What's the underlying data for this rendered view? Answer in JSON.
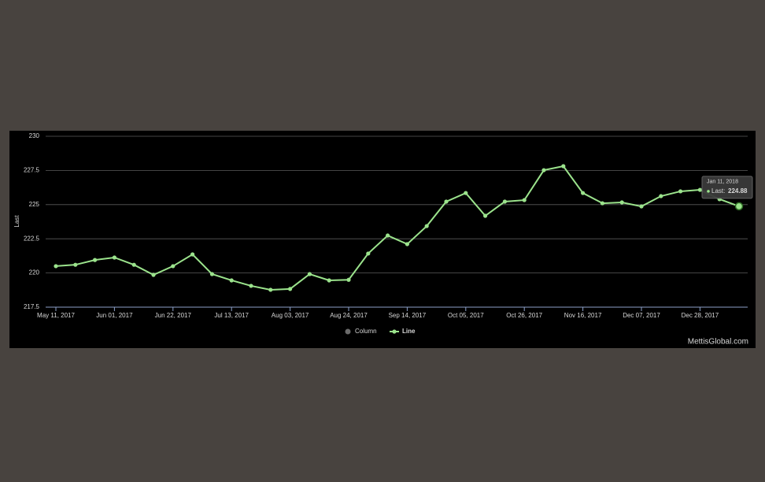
{
  "chart_data": {
    "type": "line",
    "y_label": "Last",
    "categories": [
      "May 11, 2017",
      null,
      null,
      "Jun 01, 2017",
      null,
      null,
      "Jun 22, 2017",
      null,
      null,
      "Jul 13, 2017",
      null,
      null,
      "Aug 03, 2017",
      null,
      null,
      "Aug 24, 2017",
      null,
      null,
      "Sep 14, 2017",
      null,
      null,
      "Oct 05, 2017",
      null,
      null,
      "Oct 26, 2017",
      null,
      null,
      "Nov 16, 2017",
      null,
      null,
      "Dec 07, 2017",
      null,
      null,
      "Dec 28, 2017",
      null,
      "Jan 11, 2018"
    ],
    "series": [
      {
        "name": "Line",
        "color": "#9be38c",
        "values": [
          220.5,
          220.6,
          220.95,
          221.13,
          220.6,
          219.86,
          220.5,
          221.36,
          219.92,
          219.46,
          219.06,
          218.77,
          218.83,
          219.92,
          219.46,
          219.5,
          221.42,
          222.74,
          222.11,
          223.43,
          225.22,
          225.85,
          224.18,
          225.22,
          225.33,
          227.52,
          227.81,
          225.85,
          225.1,
          225.16,
          224.87,
          225.62,
          225.97,
          226.08,
          225.4,
          224.88
        ]
      }
    ],
    "inactive_legend": {
      "name": "Column",
      "color": "#6b6b6b"
    },
    "ylim": [
      217.5,
      230
    ],
    "yticks": [
      217.5,
      220,
      222.5,
      225,
      227.5,
      230
    ],
    "grid": true,
    "tooltip": {
      "label": "Last:"
    },
    "credits": "MettisGlobal.com"
  }
}
